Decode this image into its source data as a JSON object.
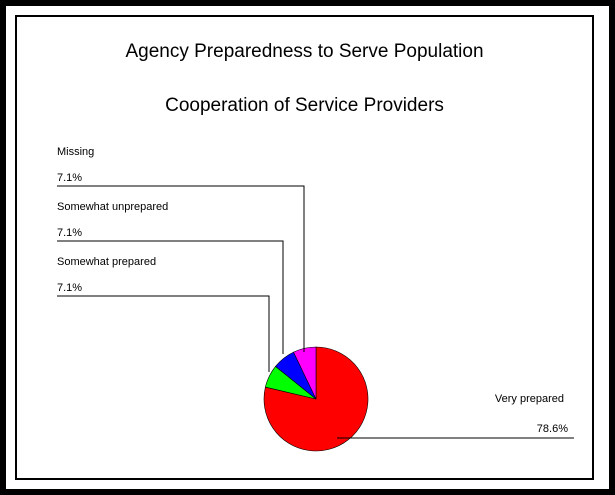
{
  "chart_data": {
    "type": "pie",
    "title": "Agency Preparedness to Serve Population",
    "subtitle": "Cooperation of Service Providers",
    "slices": [
      {
        "label": "Very prepared",
        "value": 78.6,
        "value_label": "78.6%",
        "color": "#ff0000"
      },
      {
        "label": "Somewhat prepared",
        "value": 7.1,
        "value_label": "7.1%",
        "color": "#00ff00"
      },
      {
        "label": "Somewhat unprepared",
        "value": 7.1,
        "value_label": "7.1%",
        "color": "#0000ff"
      },
      {
        "label": "Missing",
        "value": 7.1,
        "value_label": "7.1%",
        "color": "#ff00ff"
      }
    ]
  }
}
